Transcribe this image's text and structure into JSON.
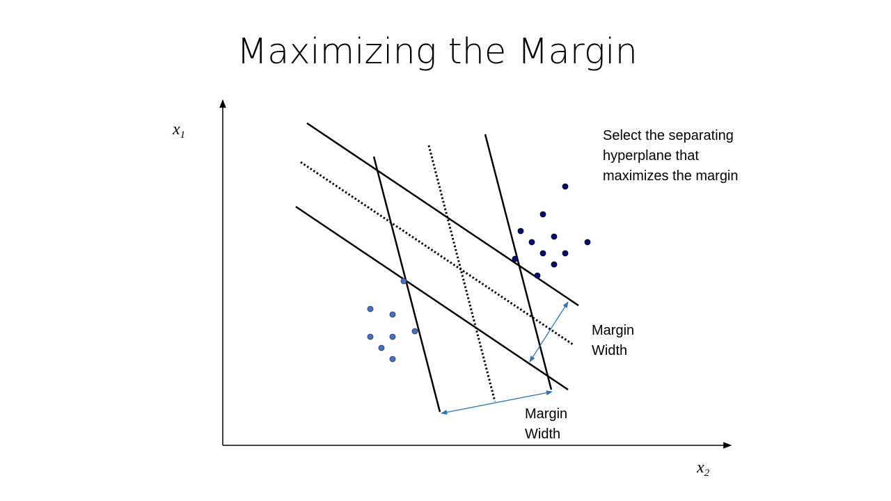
{
  "title": "Maximizing the Margin",
  "axes": {
    "y_label": "x",
    "y_sub": "1",
    "x_label": "x",
    "x_sub": "2"
  },
  "note": "Select the separating hyperplane that maximizes the margin",
  "margin_labels": {
    "first_line1": "Margin",
    "first_line2": "Width",
    "second_line1": "Margin",
    "second_line2": "Width"
  },
  "colors": {
    "class_a_points": "#0b0b7a",
    "class_b_points": "#4472c4",
    "arrow": "#2e75b6",
    "lines": "#000000"
  }
}
